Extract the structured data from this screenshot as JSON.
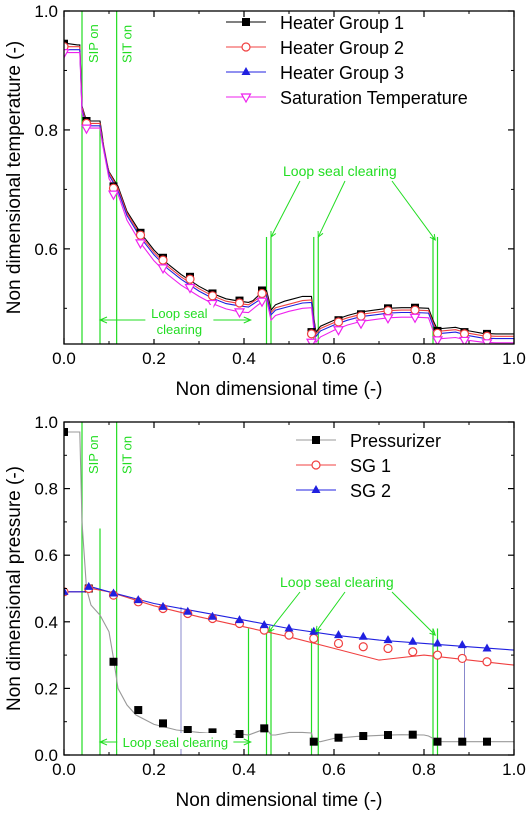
{
  "chart_data": [
    {
      "type": "line",
      "xlabel": "Non dimensional time (-)",
      "ylabel": "Non dimensional temperature (-)",
      "xlim": [
        0.0,
        1.0
      ],
      "ylim": [
        0.44,
        1.0
      ],
      "xticks": [
        "0.0",
        "0.2",
        "0.4",
        "0.6",
        "0.8",
        "1.0"
      ],
      "yticks": [
        "0.6",
        "0.8",
        "1.0"
      ],
      "ytick_values": [
        0.6,
        0.8,
        1.0
      ],
      "legend_position": "top-right",
      "annotations": {
        "sip": "SIP on",
        "sit": "SIT on",
        "loop_seal_top": "Loop seal clearing",
        "loop_seal_bottom_1": "Loop seal",
        "loop_seal_bottom_2": "clearing"
      },
      "series": [
        {
          "name": "Heater Group 1",
          "color": "#000000",
          "marker": "square",
          "x": [
            0.0,
            0.01,
            0.02,
            0.03,
            0.035,
            0.04,
            0.05,
            0.06,
            0.07,
            0.08,
            0.085,
            0.09,
            0.1,
            0.12,
            0.14,
            0.17,
            0.2,
            0.23,
            0.26,
            0.3,
            0.33,
            0.36,
            0.39,
            0.41,
            0.42,
            0.43,
            0.44,
            0.45,
            0.455,
            0.46,
            0.47,
            0.49,
            0.51,
            0.53,
            0.55,
            0.555,
            0.56,
            0.57,
            0.6,
            0.63,
            0.66,
            0.69,
            0.72,
            0.75,
            0.78,
            0.81,
            0.82,
            0.83,
            0.84,
            0.87,
            0.9,
            0.93,
            0.96,
            1.0
          ],
          "y": [
            0.945,
            0.945,
            0.944,
            0.943,
            0.943,
            0.84,
            0.815,
            0.815,
            0.815,
            0.815,
            0.79,
            0.76,
            0.73,
            0.705,
            0.663,
            0.627,
            0.598,
            0.575,
            0.557,
            0.537,
            0.525,
            0.516,
            0.512,
            0.51,
            0.513,
            0.52,
            0.528,
            0.53,
            0.515,
            0.497,
            0.506,
            0.512,
            0.516,
            0.52,
            0.52,
            0.484,
            0.46,
            0.47,
            0.48,
            0.488,
            0.494,
            0.497,
            0.5,
            0.501,
            0.501,
            0.5,
            0.48,
            0.464,
            0.466,
            0.468,
            0.462,
            0.458,
            0.457,
            0.457
          ],
          "marker_x": [
            0.0,
            0.05,
            0.11,
            0.17,
            0.22,
            0.28,
            0.33,
            0.39,
            0.44,
            0.55,
            0.61,
            0.66,
            0.72,
            0.78,
            0.83,
            0.89,
            0.94
          ],
          "marker_y": [
            0.945,
            0.815,
            0.705,
            0.627,
            0.585,
            0.553,
            0.525,
            0.513,
            0.53,
            0.46,
            0.48,
            0.49,
            0.5,
            0.501,
            0.462,
            0.46,
            0.457
          ]
        },
        {
          "name": "Heater Group 2",
          "color": "#f04040",
          "marker": "circle",
          "x": [
            0.0,
            0.035,
            0.04,
            0.05,
            0.08,
            0.085,
            0.1,
            0.12,
            0.14,
            0.17,
            0.2,
            0.23,
            0.26,
            0.3,
            0.33,
            0.36,
            0.39,
            0.41,
            0.43,
            0.45,
            0.46,
            0.47,
            0.5,
            0.53,
            0.55,
            0.555,
            0.56,
            0.57,
            0.6,
            0.63,
            0.66,
            0.69,
            0.72,
            0.75,
            0.78,
            0.81,
            0.82,
            0.83,
            0.84,
            0.87,
            0.9,
            0.93,
            0.96,
            1.0
          ],
          "y": [
            0.94,
            0.94,
            0.838,
            0.811,
            0.811,
            0.786,
            0.728,
            0.702,
            0.66,
            0.623,
            0.594,
            0.571,
            0.553,
            0.533,
            0.521,
            0.512,
            0.508,
            0.506,
            0.516,
            0.526,
            0.493,
            0.501,
            0.507,
            0.513,
            0.514,
            0.48,
            0.457,
            0.466,
            0.476,
            0.484,
            0.49,
            0.493,
            0.496,
            0.497,
            0.497,
            0.496,
            0.476,
            0.46,
            0.462,
            0.464,
            0.458,
            0.454,
            0.453,
            0.453
          ],
          "marker_x": [
            0.0,
            0.05,
            0.11,
            0.17,
            0.22,
            0.28,
            0.33,
            0.39,
            0.44,
            0.55,
            0.61,
            0.66,
            0.72,
            0.78,
            0.83,
            0.89,
            0.94
          ],
          "marker_y": [
            0.94,
            0.811,
            0.702,
            0.623,
            0.581,
            0.549,
            0.521,
            0.509,
            0.525,
            0.457,
            0.477,
            0.487,
            0.496,
            0.497,
            0.458,
            0.457,
            0.453
          ]
        },
        {
          "name": "Heater Group 3",
          "color": "#2020e0",
          "marker": "triangle-up",
          "x": [
            0.0,
            0.035,
            0.04,
            0.05,
            0.08,
            0.085,
            0.1,
            0.12,
            0.14,
            0.17,
            0.2,
            0.23,
            0.26,
            0.3,
            0.33,
            0.36,
            0.39,
            0.41,
            0.43,
            0.45,
            0.46,
            0.47,
            0.5,
            0.53,
            0.55,
            0.555,
            0.56,
            0.57,
            0.6,
            0.63,
            0.66,
            0.69,
            0.72,
            0.75,
            0.78,
            0.81,
            0.82,
            0.83,
            0.84,
            0.87,
            0.9,
            0.93,
            0.96,
            1.0
          ],
          "y": [
            0.935,
            0.935,
            0.834,
            0.807,
            0.807,
            0.782,
            0.724,
            0.698,
            0.656,
            0.619,
            0.59,
            0.567,
            0.549,
            0.529,
            0.517,
            0.508,
            0.504,
            0.502,
            0.512,
            0.522,
            0.489,
            0.497,
            0.503,
            0.509,
            0.51,
            0.476,
            0.453,
            0.462,
            0.472,
            0.48,
            0.486,
            0.489,
            0.492,
            0.493,
            0.493,
            0.492,
            0.472,
            0.456,
            0.458,
            0.46,
            0.454,
            0.45,
            0.449,
            0.449
          ],
          "marker_x": [],
          "marker_y": []
        },
        {
          "name": "Saturation Temperature",
          "color": "#ee22ee",
          "marker": "triangle-down",
          "x": [
            0.0,
            0.035,
            0.04,
            0.05,
            0.08,
            0.085,
            0.1,
            0.12,
            0.14,
            0.17,
            0.2,
            0.23,
            0.26,
            0.3,
            0.33,
            0.36,
            0.39,
            0.41,
            0.43,
            0.45,
            0.46,
            0.47,
            0.5,
            0.53,
            0.55,
            0.555,
            0.56,
            0.57,
            0.6,
            0.63,
            0.66,
            0.69,
            0.72,
            0.75,
            0.78,
            0.81,
            0.82,
            0.83,
            0.84,
            0.87,
            0.9,
            0.93,
            0.96,
            1.0
          ],
          "y": [
            0.93,
            0.93,
            0.83,
            0.803,
            0.803,
            0.778,
            0.718,
            0.692,
            0.648,
            0.61,
            0.58,
            0.557,
            0.539,
            0.52,
            0.508,
            0.499,
            0.494,
            0.493,
            0.505,
            0.516,
            0.48,
            0.488,
            0.495,
            0.5,
            0.501,
            0.465,
            0.443,
            0.452,
            0.463,
            0.472,
            0.478,
            0.481,
            0.484,
            0.485,
            0.485,
            0.484,
            0.463,
            0.447,
            0.449,
            0.451,
            0.446,
            0.443,
            0.442,
            0.442
          ],
          "marker_x": [
            0.0,
            0.05,
            0.11,
            0.17,
            0.22,
            0.28,
            0.33,
            0.39,
            0.44,
            0.55,
            0.61,
            0.66,
            0.72,
            0.78,
            0.83,
            0.89,
            0.94
          ],
          "marker_y": [
            0.93,
            0.803,
            0.692,
            0.61,
            0.568,
            0.535,
            0.508,
            0.494,
            0.512,
            0.443,
            0.464,
            0.475,
            0.484,
            0.485,
            0.447,
            0.446,
            0.442
          ]
        }
      ],
      "events": {
        "sip_x": 0.04,
        "sit_x": 0.117,
        "loop_seal_x": [
          0.45,
          0.46,
          0.555,
          0.565,
          0.82,
          0.83
        ],
        "loop_seal_bottom_bracket": [
          0.08,
          0.415
        ]
      }
    },
    {
      "type": "line",
      "xlabel": "Non dimensional time (-)",
      "ylabel": "Non dimensional pressure (-)",
      "xlim": [
        0.0,
        1.0
      ],
      "ylim": [
        0.0,
        1.0
      ],
      "xticks": [
        "0.0",
        "0.2",
        "0.4",
        "0.6",
        "0.8",
        "1.0"
      ],
      "yticks": [
        "0.0",
        "0.2",
        "0.4",
        "0.6",
        "0.8",
        "1.0"
      ],
      "ytick_values": [
        0.0,
        0.2,
        0.4,
        0.6,
        0.8,
        1.0
      ],
      "legend_position": "top-right",
      "annotations": {
        "sip": "SIP on",
        "sit": "SIT on",
        "loop_seal_top": "Loop seal clearing",
        "loop_seal_bottom": "Loop seal clearing"
      },
      "series": [
        {
          "name": "Pressurizer",
          "color": "#000000",
          "line_color": "#999999",
          "marker": "square",
          "x": [
            0.0,
            0.03,
            0.035,
            0.04,
            0.05,
            0.06,
            0.08,
            0.1,
            0.11,
            0.12,
            0.14,
            0.16,
            0.2,
            0.25,
            0.3,
            0.35,
            0.4,
            0.41,
            0.43,
            0.45,
            0.46,
            0.47,
            0.5,
            0.53,
            0.55,
            0.555,
            0.57,
            0.6,
            0.65,
            0.7,
            0.75,
            0.8,
            0.81,
            0.82,
            0.83,
            0.85,
            0.9,
            0.95,
            1.0
          ],
          "y": [
            0.97,
            0.97,
            0.97,
            0.7,
            0.5,
            0.45,
            0.42,
            0.37,
            0.29,
            0.2,
            0.15,
            0.12,
            0.092,
            0.075,
            0.068,
            0.063,
            0.062,
            0.06,
            0.07,
            0.08,
            0.06,
            0.06,
            0.068,
            0.068,
            0.066,
            0.04,
            0.04,
            0.05,
            0.056,
            0.059,
            0.061,
            0.06,
            0.057,
            0.05,
            0.04,
            0.04,
            0.04,
            0.04,
            0.04
          ],
          "marker_x": [
            0.0,
            0.055,
            0.11,
            0.165,
            0.22,
            0.275,
            0.33,
            0.39,
            0.445,
            0.555,
            0.61,
            0.665,
            0.72,
            0.775,
            0.83,
            0.885,
            0.94
          ],
          "marker_y": [
            0.97,
            0.5,
            0.28,
            0.135,
            0.095,
            0.075,
            0.068,
            0.063,
            0.08,
            0.04,
            0.052,
            0.057,
            0.06,
            0.061,
            0.04,
            0.04,
            0.04
          ]
        },
        {
          "name": "SG 1",
          "color": "#f04040",
          "marker": "circle",
          "x": [
            0.0,
            0.05,
            0.06,
            0.1,
            0.2,
            0.3,
            0.4,
            0.5,
            0.6,
            0.7,
            0.8,
            0.9,
            1.0
          ],
          "y": [
            0.49,
            0.49,
            0.5,
            0.49,
            0.448,
            0.415,
            0.385,
            0.355,
            0.32,
            0.285,
            0.3,
            0.285,
            0.27
          ],
          "marker_x": [
            0.0,
            0.055,
            0.11,
            0.165,
            0.22,
            0.275,
            0.33,
            0.39,
            0.445,
            0.5,
            0.555,
            0.61,
            0.665,
            0.72,
            0.775,
            0.83,
            0.885,
            0.94
          ],
          "marker_y": [
            0.49,
            0.5,
            0.48,
            0.46,
            0.44,
            0.425,
            0.41,
            0.395,
            0.375,
            0.36,
            0.35,
            0.335,
            0.325,
            0.32,
            0.31,
            0.3,
            0.29,
            0.28
          ]
        },
        {
          "name": "SG 2",
          "color": "#2020e0",
          "marker": "triangle-up",
          "x": [
            0.0,
            0.05,
            0.06,
            0.1,
            0.2,
            0.3,
            0.4,
            0.5,
            0.6,
            0.7,
            0.8,
            0.9,
            1.0
          ],
          "y": [
            0.49,
            0.49,
            0.505,
            0.49,
            0.455,
            0.43,
            0.405,
            0.38,
            0.36,
            0.345,
            0.335,
            0.325,
            0.315
          ],
          "marker_x": [
            0.0,
            0.055,
            0.11,
            0.165,
            0.22,
            0.275,
            0.33,
            0.39,
            0.445,
            0.5,
            0.555,
            0.61,
            0.665,
            0.72,
            0.775,
            0.83,
            0.885,
            0.94
          ],
          "marker_y": [
            0.49,
            0.505,
            0.485,
            0.465,
            0.445,
            0.43,
            0.415,
            0.405,
            0.39,
            0.38,
            0.37,
            0.36,
            0.355,
            0.345,
            0.34,
            0.335,
            0.33,
            0.32
          ]
        }
      ],
      "drops": [
        {
          "x": 0.26,
          "from": 0.445,
          "to": 0.0
        },
        {
          "x": 0.89,
          "from": 0.325,
          "to": 0.04
        }
      ],
      "events": {
        "sip_x": 0.04,
        "sit_x": 0.117,
        "loop_seal_x": [
          0.41,
          0.45,
          0.46,
          0.55,
          0.565,
          0.82,
          0.83
        ],
        "loop_seal_bottom_bracket": [
          0.08,
          0.415
        ]
      }
    }
  ]
}
